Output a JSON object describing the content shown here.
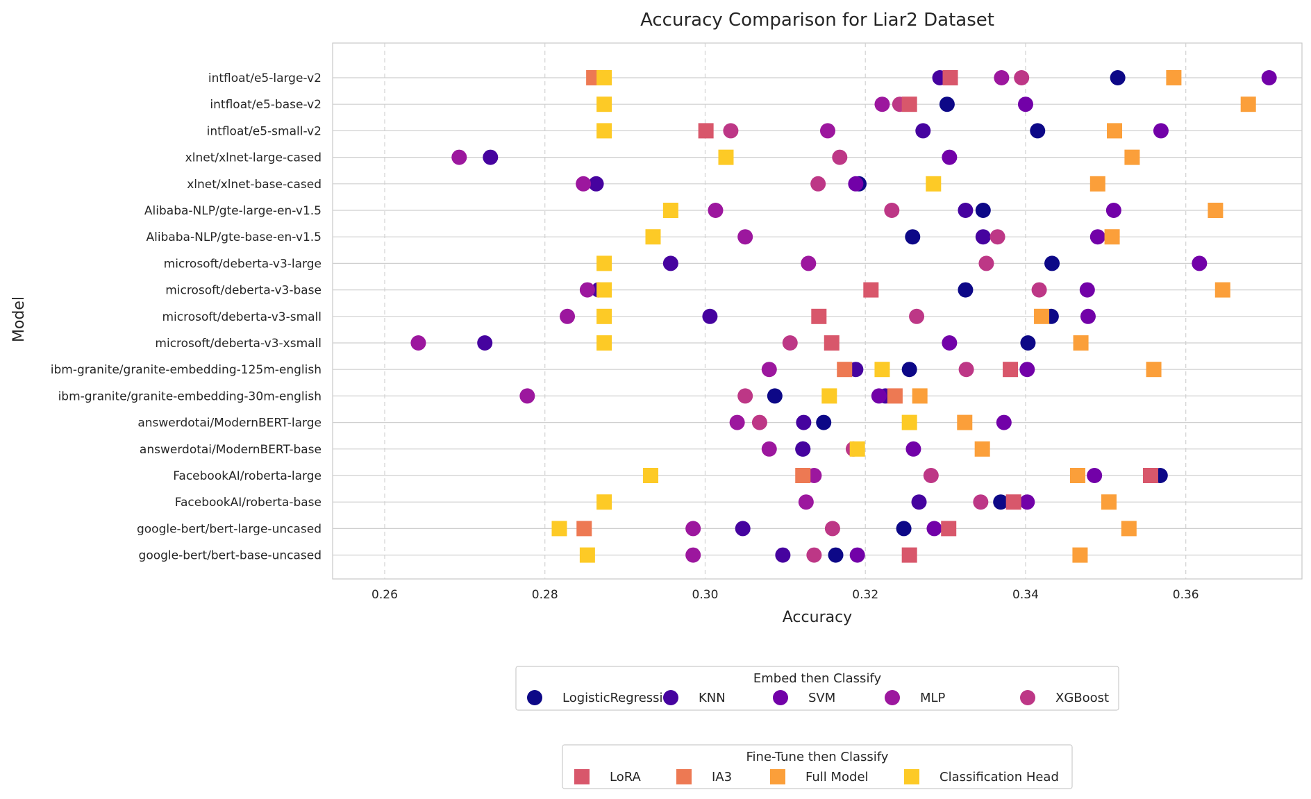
{
  "chart_data": {
    "type": "scatter",
    "title": "Accuracy Comparison for Liar2 Dataset",
    "xlabel": "Accuracy",
    "ylabel": "Model",
    "xlim": [
      0.2535,
      0.3745
    ],
    "xticks": [
      "0.26",
      "0.28",
      "0.30",
      "0.32",
      "0.34",
      "0.36"
    ],
    "xtick_values": [
      0.26,
      0.28,
      0.3,
      0.32,
      0.34,
      0.36
    ],
    "grid": {
      "x": "dashed",
      "y": "solid"
    },
    "models": [
      "intfloat/e5-large-v2",
      "intfloat/e5-base-v2",
      "intfloat/e5-small-v2",
      "xlnet/xlnet-large-cased",
      "xlnet/xlnet-base-cased",
      "Alibaba-NLP/gte-large-en-v1.5",
      "Alibaba-NLP/gte-base-en-v1.5",
      "microsoft/deberta-v3-large",
      "microsoft/deberta-v3-base",
      "microsoft/deberta-v3-small",
      "microsoft/deberta-v3-xsmall",
      "ibm-granite/granite-embedding-125m-english",
      "ibm-granite/granite-embedding-30m-english",
      "answerdotai/ModernBERT-large",
      "answerdotai/ModernBERT-base",
      "FacebookAI/roberta-large",
      "FacebookAI/roberta-base",
      "google-bert/bert-large-uncased",
      "google-bert/bert-base-uncased"
    ],
    "legend_groups": [
      {
        "title": "Embed then Classify",
        "marker": "circle",
        "placement": "below-upper",
        "series": [
          {
            "name": "LogisticRegression",
            "color": "#0d0887",
            "values": [
              0.3515,
              0.3302,
              0.3415,
              null,
              0.3192,
              0.3347,
              0.3259,
              0.3433,
              0.3325,
              0.3432,
              0.3403,
              0.3255,
              0.3087,
              0.3148,
              0.3122,
              0.3568,
              0.3369,
              0.3248,
              0.3163
            ]
          },
          {
            "name": "KNN",
            "color": "#46039f",
            "values": [
              0.3293,
              null,
              0.3272,
              0.2732,
              0.2864,
              0.3325,
              0.3347,
              0.2957,
              0.2867,
              0.3006,
              0.2725,
              0.3188,
              0.3225,
              0.3123,
              0.3122,
              null,
              0.3267,
              0.3047,
              0.3097
            ]
          },
          {
            "name": "SVM",
            "color": "#7201a8",
            "values": [
              0.3704,
              0.34,
              0.3569,
              0.3305,
              0.3188,
              0.351,
              0.349,
              0.3617,
              0.3477,
              0.3478,
              0.3305,
              0.3402,
              0.3217,
              0.3373,
              0.326,
              0.3486,
              0.3402,
              0.3286,
              0.319
            ]
          },
          {
            "name": "MLP",
            "color": "#9c179e",
            "values": [
              0.337,
              0.3221,
              0.3153,
              0.2693,
              0.2848,
              0.3013,
              0.305,
              0.3129,
              0.2853,
              0.2828,
              0.2642,
              0.308,
              0.2778,
              0.304,
              0.308,
              0.3136,
              0.3126,
              0.2985,
              0.2985
            ]
          },
          {
            "name": "XGBoost",
            "color": "#bd3786",
            "values": [
              0.3395,
              0.3243,
              0.3032,
              0.3168,
              0.3141,
              0.3233,
              0.3365,
              0.3351,
              0.3417,
              0.3264,
              0.3106,
              0.3326,
              0.305,
              0.3068,
              0.3185,
              0.3282,
              0.3344,
              0.3159,
              0.3136
            ]
          }
        ]
      },
      {
        "title": "Fine-Tune then Classify",
        "marker": "square",
        "placement": "below-lower",
        "series": [
          {
            "name": "LoRA",
            "color": "#d8576b",
            "values": [
              0.3306,
              0.3255,
              0.3001,
              null,
              null,
              null,
              null,
              null,
              0.3207,
              0.3142,
              0.3158,
              0.3381,
              null,
              null,
              null,
              0.3556,
              0.3385,
              0.3304,
              0.3255
            ]
          },
          {
            "name": "IA3",
            "color": "#ed7953",
            "values": [
              0.2861,
              null,
              null,
              null,
              null,
              null,
              null,
              null,
              null,
              null,
              null,
              0.3174,
              0.3237,
              null,
              null,
              0.3122,
              null,
              0.2849,
              null
            ]
          },
          {
            "name": "Full Model",
            "color": "#fb9f3a",
            "values": [
              0.3585,
              0.3678,
              0.3511,
              0.3533,
              0.349,
              0.3637,
              0.3508,
              null,
              0.3646,
              0.342,
              0.3469,
              0.356,
              0.3268,
              0.3324,
              0.3346,
              0.3465,
              0.3504,
              0.3529,
              0.3468
            ]
          },
          {
            "name": "Classification Head",
            "color": "#fdca26",
            "values": [
              0.2874,
              0.2874,
              0.2874,
              0.3026,
              0.3285,
              0.2957,
              0.2935,
              0.2874,
              0.2874,
              0.2874,
              0.2874,
              0.3221,
              0.3155,
              0.3255,
              0.319,
              0.2932,
              0.2874,
              0.2818,
              0.2853
            ]
          }
        ]
      }
    ]
  }
}
